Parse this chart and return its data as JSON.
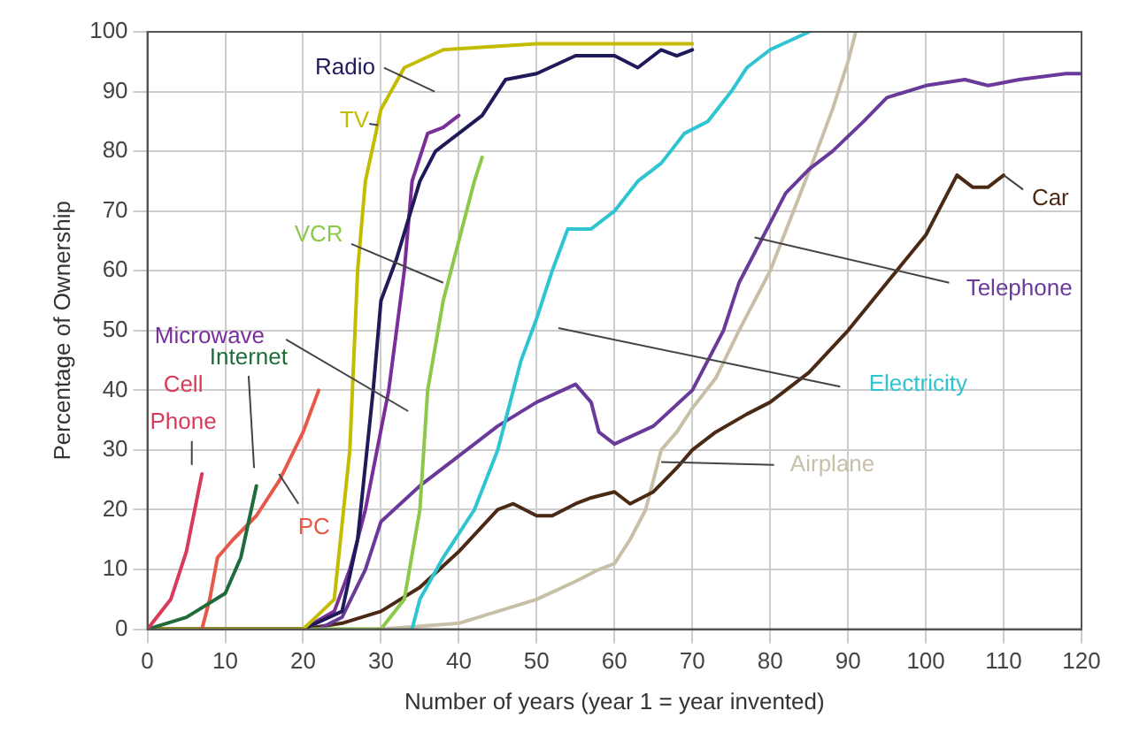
{
  "chart_data": {
    "type": "line",
    "xlabel": "Number of years (year 1 = year invented)",
    "ylabel": "Percentage of Ownership",
    "xlim": [
      0,
      120
    ],
    "xticks": [
      0,
      10,
      20,
      30,
      40,
      50,
      60,
      70,
      80,
      90,
      100,
      110,
      120
    ],
    "ylim": [
      0,
      100
    ],
    "yticks": [
      0,
      10,
      20,
      30,
      40,
      50,
      60,
      70,
      80,
      90,
      100
    ],
    "grid": true,
    "legend": false,
    "marker": "none",
    "line_style": "solid",
    "series": [
      {
        "name": "Cell Phone",
        "color": "#d93a5a",
        "x": [
          0,
          3,
          5,
          7
        ],
        "values": [
          0,
          5,
          13,
          26
        ]
      },
      {
        "name": "Internet",
        "color": "#1f6b3a",
        "x": [
          0,
          5,
          10,
          12,
          14
        ],
        "values": [
          0,
          2,
          6,
          12,
          24
        ]
      },
      {
        "name": "PC",
        "color": "#e8584a",
        "x": [
          7,
          8,
          9,
          11,
          14,
          17,
          20,
          22
        ],
        "values": [
          0,
          5,
          12,
          15,
          19,
          25,
          33,
          40
        ]
      },
      {
        "name": "TV",
        "color": "#c4bc00",
        "x": [
          0,
          20,
          24,
          26,
          27,
          28,
          30,
          33,
          38,
          50,
          70
        ],
        "values": [
          0,
          0,
          5,
          30,
          60,
          75,
          87,
          94,
          97,
          98,
          98
        ]
      },
      {
        "name": "Radio",
        "color": "#1f1a5a",
        "x": [
          0,
          20,
          25,
          27,
          29,
          30,
          32,
          35,
          37,
          40,
          43,
          46,
          50,
          55,
          60,
          63,
          66,
          68,
          70
        ],
        "values": [
          0,
          0,
          3,
          15,
          40,
          55,
          62,
          75,
          80,
          83,
          86,
          92,
          93,
          96,
          96,
          94,
          97,
          96,
          97
        ]
      },
      {
        "name": "VCR",
        "color": "#8cc84a",
        "x": [
          0,
          30,
          33,
          35,
          36,
          38,
          40,
          42,
          43
        ],
        "values": [
          0,
          0,
          5,
          20,
          40,
          55,
          65,
          75,
          79
        ]
      },
      {
        "name": "Microwave",
        "color": "#7a2e9a",
        "x": [
          0,
          20,
          24,
          26,
          28,
          31,
          33,
          34,
          36,
          38,
          40
        ],
        "values": [
          0,
          0,
          3,
          10,
          20,
          40,
          60,
          75,
          83,
          84,
          86
        ]
      },
      {
        "name": "Electricity",
        "color": "#2ec4d0",
        "x": [
          34,
          35,
          38,
          42,
          45,
          48,
          50,
          52,
          54,
          57,
          60,
          63,
          66,
          69,
          72,
          75,
          77,
          80,
          85
        ],
        "values": [
          0,
          5,
          12,
          20,
          30,
          45,
          52,
          60,
          67,
          67,
          70,
          75,
          78,
          83,
          85,
          90,
          94,
          97,
          100
        ]
      },
      {
        "name": "Telephone",
        "color": "#6a3a9a",
        "x": [
          0,
          22,
          25,
          28,
          30,
          35,
          40,
          45,
          50,
          55,
          57,
          58,
          60,
          65,
          70,
          72,
          74,
          76,
          78,
          80,
          82,
          85,
          88,
          92,
          95,
          100,
          105,
          108,
          112,
          118,
          120
        ],
        "values": [
          0,
          0,
          2,
          10,
          18,
          24,
          29,
          34,
          38,
          41,
          38,
          33,
          31,
          34,
          40,
          45,
          50,
          58,
          63,
          68,
          73,
          77,
          80,
          85,
          89,
          91,
          92,
          91,
          92,
          93,
          93
        ]
      },
      {
        "name": "Car",
        "color": "#4a2a14",
        "x": [
          0,
          20,
          25,
          30,
          35,
          40,
          45,
          47,
          50,
          52,
          55,
          57,
          60,
          62,
          65,
          68,
          70,
          73,
          77,
          80,
          85,
          90,
          95,
          100,
          104,
          106,
          108,
          110
        ],
        "values": [
          0,
          0,
          1,
          3,
          7,
          13,
          20,
          21,
          19,
          19,
          21,
          22,
          23,
          21,
          23,
          27,
          30,
          33,
          36,
          38,
          43,
          50,
          58,
          66,
          76,
          74,
          74,
          76
        ]
      },
      {
        "name": "Airplane",
        "color": "#c8bfa8",
        "x": [
          0,
          30,
          40,
          45,
          50,
          55,
          58,
          60,
          62,
          64,
          66,
          68,
          70,
          73,
          76,
          80,
          83,
          86,
          88,
          90,
          91
        ],
        "values": [
          0,
          0,
          1,
          3,
          5,
          8,
          10,
          11,
          15,
          20,
          30,
          33,
          37,
          42,
          50,
          60,
          70,
          80,
          87,
          95,
          100
        ]
      }
    ]
  }
}
